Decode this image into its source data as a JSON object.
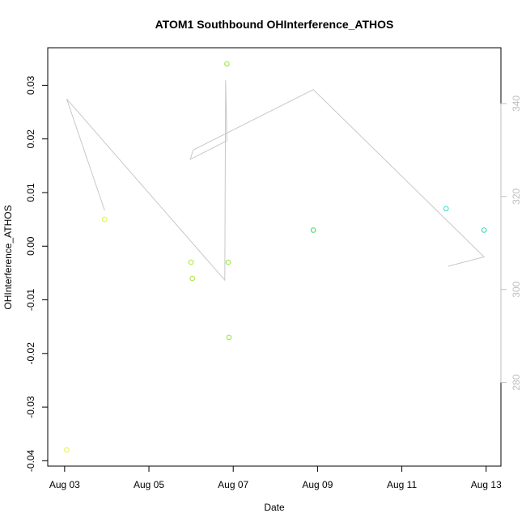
{
  "chart_data": {
    "type": "scatter",
    "title": "ATOM1 Southbound OHInterference_ATHOS",
    "xlabel": "Date",
    "ylabel": "OHInterference_ATHOS",
    "x_ticks": [
      {
        "value": 3,
        "label": "Aug 03"
      },
      {
        "value": 5,
        "label": "Aug 05"
      },
      {
        "value": 7,
        "label": "Aug 07"
      },
      {
        "value": 9,
        "label": "Aug 09"
      },
      {
        "value": 11,
        "label": "Aug 11"
      },
      {
        "value": 13,
        "label": "Aug 13"
      }
    ],
    "xlim": [
      2.6,
      13.35
    ],
    "ylim": [
      -0.041,
      0.037
    ],
    "y_ticks": [
      {
        "value": -0.04,
        "label": "-0.04"
      },
      {
        "value": -0.03,
        "label": "-0.03"
      },
      {
        "value": -0.02,
        "label": "-0.02"
      },
      {
        "value": -0.01,
        "label": "-0.01"
      },
      {
        "value": 0.0,
        "label": "0.00"
      },
      {
        "value": 0.01,
        "label": "0.01"
      },
      {
        "value": 0.02,
        "label": "0.02"
      },
      {
        "value": 0.03,
        "label": "0.03"
      }
    ],
    "y2lim": [
      262,
      352
    ],
    "y2_ticks": [
      {
        "value": 280,
        "label": "280"
      },
      {
        "value": 300,
        "label": "300"
      },
      {
        "value": 320,
        "label": "320"
      },
      {
        "value": 340,
        "label": "340"
      }
    ],
    "points": [
      {
        "x": 3.05,
        "y": -0.038,
        "color": "#e6f24a"
      },
      {
        "x": 3.95,
        "y": 0.005,
        "color": "#e0f23a"
      },
      {
        "x": 6.0,
        "y": -0.003,
        "color": "#a6e830"
      },
      {
        "x": 6.03,
        "y": -0.006,
        "color": "#a6e830"
      },
      {
        "x": 6.85,
        "y": 0.034,
        "color": "#8ee838"
      },
      {
        "x": 6.88,
        "y": -0.003,
        "color": "#8ee838"
      },
      {
        "x": 6.9,
        "y": -0.017,
        "color": "#8ee838"
      },
      {
        "x": 8.9,
        "y": 0.003,
        "color": "#3cd65a"
      },
      {
        "x": 12.05,
        "y": 0.007,
        "color": "#2ee0c8"
      },
      {
        "x": 12.95,
        "y": 0.003,
        "color": "#28d6b0"
      }
    ],
    "secondary_line": {
      "color": "#c8c8c8",
      "values": [
        {
          "x": 3.95,
          "y": 317
        },
        {
          "x": 3.05,
          "y": 341
        },
        {
          "x": 6.8,
          "y": 302
        },
        {
          "x": 6.82,
          "y": 345
        },
        {
          "x": 6.85,
          "y": 332
        },
        {
          "x": 5.98,
          "y": 328
        },
        {
          "x": 6.05,
          "y": 330
        },
        {
          "x": 8.9,
          "y": 343
        },
        {
          "x": 12.95,
          "y": 307
        },
        {
          "x": 12.1,
          "y": 305
        }
      ]
    }
  }
}
